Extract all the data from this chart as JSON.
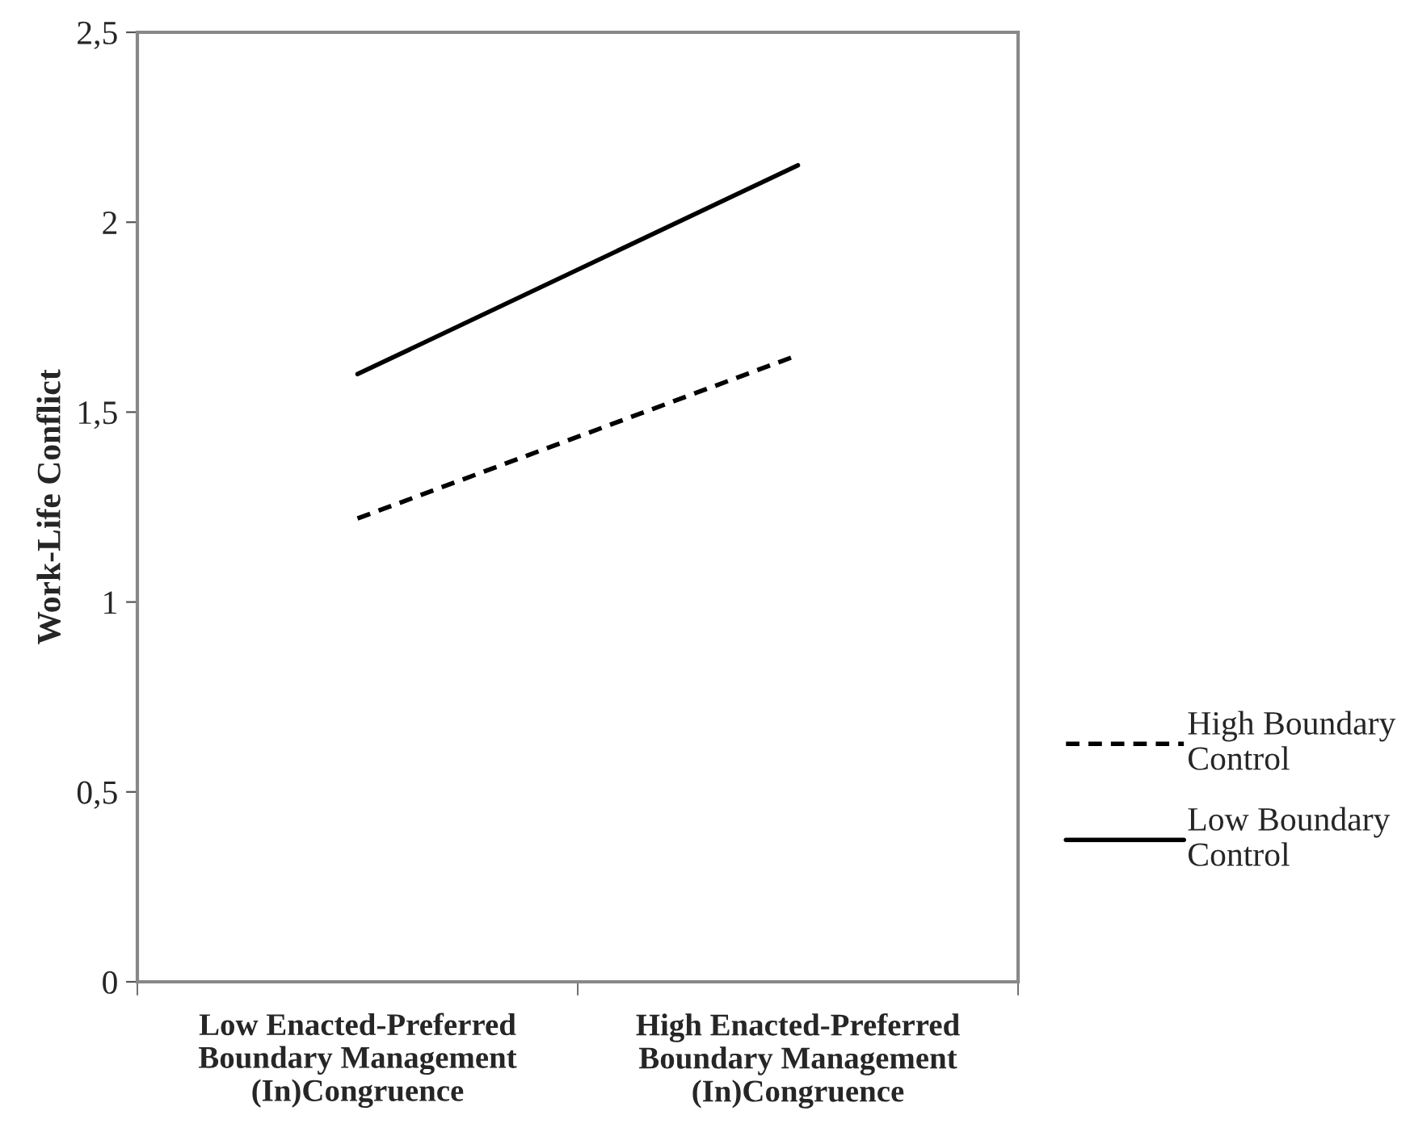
{
  "chart_data": {
    "type": "line",
    "ylabel": "Work-Life Conflict",
    "categories": [
      "Low Enacted-Preferred\nBoundary Management\n(In)Congruence",
      "High Enacted-Preferred\nBoundary Management\n(In)Congruence"
    ],
    "series": [
      {
        "name": "High Boundary\nControl",
        "color": "#000000",
        "line_style": "dashed",
        "values": [
          1.22,
          1.65
        ]
      },
      {
        "name": "Low Boundary\nControl",
        "color": "#000000",
        "line_style": "solid",
        "values": [
          1.6,
          2.15
        ]
      }
    ],
    "ylim": [
      0,
      2.5
    ],
    "yticks": [
      {
        "value": 0,
        "label": "0"
      },
      {
        "value": 0.5,
        "label": "0,5"
      },
      {
        "value": 1,
        "label": "1"
      },
      {
        "value": 1.5,
        "label": "1,5"
      },
      {
        "value": 2,
        "label": "2"
      },
      {
        "value": 2.5,
        "label": "2,5"
      }
    ],
    "grid": false,
    "legend": "right"
  }
}
